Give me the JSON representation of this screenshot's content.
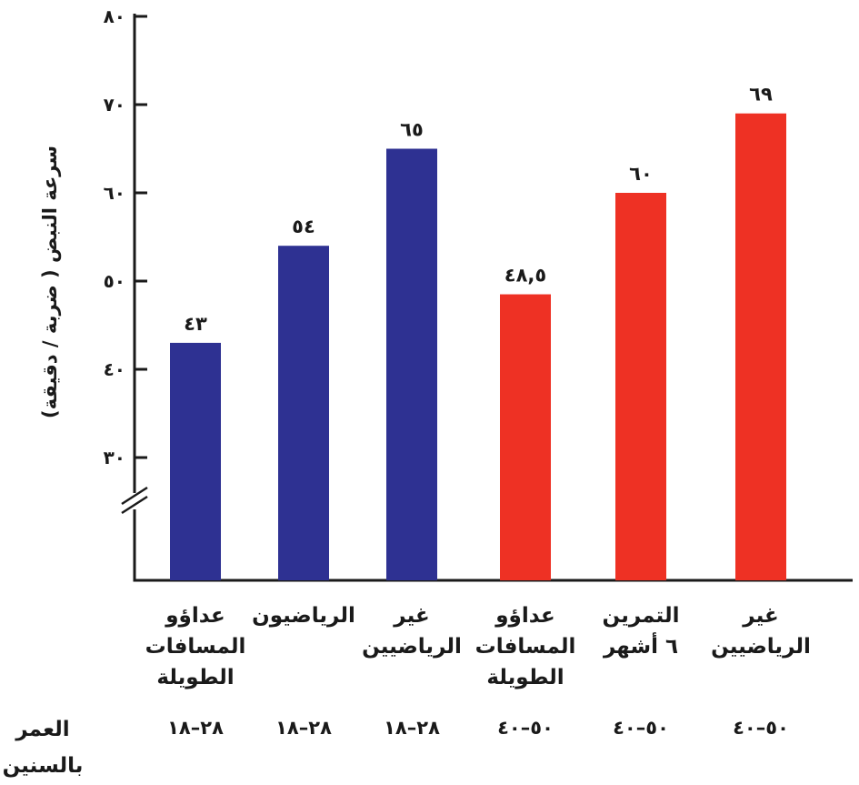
{
  "chart_data": {
    "type": "bar",
    "ylabel": "سرعة النبض ( ضربة / دقيقة)",
    "ylim": [
      30,
      80
    ],
    "yticks": [
      30,
      40,
      50,
      60,
      70,
      80
    ],
    "ytick_labels": [
      "٣٠",
      "٤٠",
      "٥٠",
      "٦٠",
      "٧٠",
      "٨٠"
    ],
    "axis_break": true,
    "grid": false,
    "categories": [
      "عداؤو المسافات\nالطويلة",
      "الرياضيون",
      "غير\nالرياضيين",
      "عداؤو المسافات\nالطويلة",
      "التمرين\n٦ أشهر",
      "غير\nالرياضيين"
    ],
    "values": [
      43,
      54,
      65,
      48.5,
      60,
      69
    ],
    "value_labels": [
      "٤٣",
      "٥٤",
      "٦٥",
      "٤٨,٥",
      "٦٠",
      "٦٩"
    ],
    "bar_colors": [
      "#2e3192",
      "#2e3192",
      "#2e3192",
      "#ee3124",
      "#ee3124",
      "#ee3124"
    ],
    "age_title": "العمر\nبالسنين",
    "age_groups": [
      "٢٨–١٨",
      "٢٨–١٨",
      "٢٨–١٨",
      "٥٠–٤٠",
      "٥٠–٤٠",
      "٥٠–٤٠"
    ]
  }
}
